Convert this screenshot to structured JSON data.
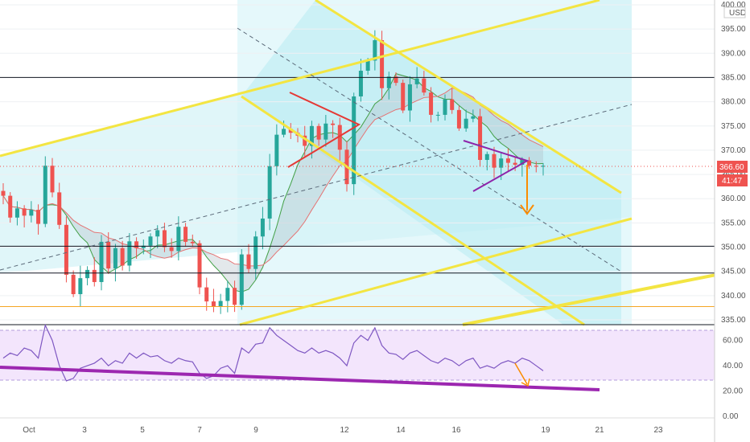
{
  "currency": "USD",
  "chart_data": [
    {
      "type": "line",
      "panel": "price",
      "y_ticks": [
        "400.00",
        "395.00",
        "390.00",
        "385.00",
        "380.00",
        "375.00",
        "370.00",
        "365.00",
        "360.00",
        "355.00",
        "350.00",
        "345.00",
        "340.00",
        "335.00"
      ],
      "ylim": [
        335,
        400
      ],
      "x_ticks": [
        "Oct",
        "3",
        "5",
        "7",
        "9",
        "12",
        "14",
        "16",
        "19",
        "21",
        "23"
      ],
      "last_price": "366.60",
      "countdown": "41:47",
      "price_colors": {
        "up": "#26a69a",
        "down": "#ef5350",
        "last": "#ef5350"
      },
      "horizontal_levels": [
        {
          "label": "385.02",
          "value": 385.02,
          "color": "#131722"
        },
        {
          "label": "350.20",
          "value": 350.2,
          "color": "#131722"
        },
        {
          "label": "344.65",
          "value": 344.65,
          "color": "#131722"
        },
        {
          "label": "337.73",
          "value": 337.73,
          "color": "#f5a623"
        }
      ],
      "closes": [
        360.6,
        356.1,
        358.0,
        356.5,
        357.7,
        354.8,
        366.8,
        361.3,
        354.6,
        344.3,
        340.3,
        343.6,
        345.3,
        342.8,
        351.1,
        345.6,
        349.8,
        346.2,
        351.2,
        349.8,
        350.3,
        352.2,
        353.5,
        350.0,
        349.2,
        354.2,
        351.1,
        350.8,
        341.7,
        338.8,
        337.8,
        338.9,
        341.6,
        338.1,
        348.5,
        345.5,
        352.2,
        355.9,
        366.7,
        373.2,
        374.4,
        373.6,
        373.0,
        370.9,
        375.0,
        372.2,
        375.5,
        375.2,
        370.1,
        363.0,
        381.1,
        386.4,
        388.5,
        392.7,
        382.8,
        385.2,
        383.9,
        378.2,
        383.6,
        384.8,
        381.9,
        377.3,
        377.3,
        380.5,
        378.3,
        374.5,
        376.5,
        377.0,
        368.0,
        369.2,
        366.4,
        368.3,
        367.4,
        367.0,
        367.9,
        366.8,
        366.6,
        366.8
      ]
    },
    {
      "type": "line",
      "panel": "rsi",
      "y_ticks": [
        "60.00",
        "40.00",
        "20.00",
        "0.00"
      ],
      "ylim": [
        0,
        75
      ],
      "series": [
        {
          "values": [
            46,
            50,
            48,
            54,
            52,
            46,
            72,
            60,
            40,
            28,
            30,
            38,
            40,
            42,
            46,
            40,
            44,
            42,
            50,
            46,
            50,
            47,
            48,
            44,
            42,
            46,
            44,
            43,
            34,
            30,
            32,
            38,
            40,
            34,
            54,
            50,
            57,
            58,
            70,
            64,
            60,
            56,
            52,
            50,
            54,
            50,
            52,
            50,
            46,
            40,
            58,
            64,
            60,
            70,
            56,
            50,
            49,
            45,
            50,
            52,
            48,
            44,
            42,
            46,
            44,
            40,
            44,
            46,
            38,
            40,
            38,
            42,
            44,
            42,
            46,
            44,
            40,
            36
          ]
        }
      ]
    }
  ]
}
